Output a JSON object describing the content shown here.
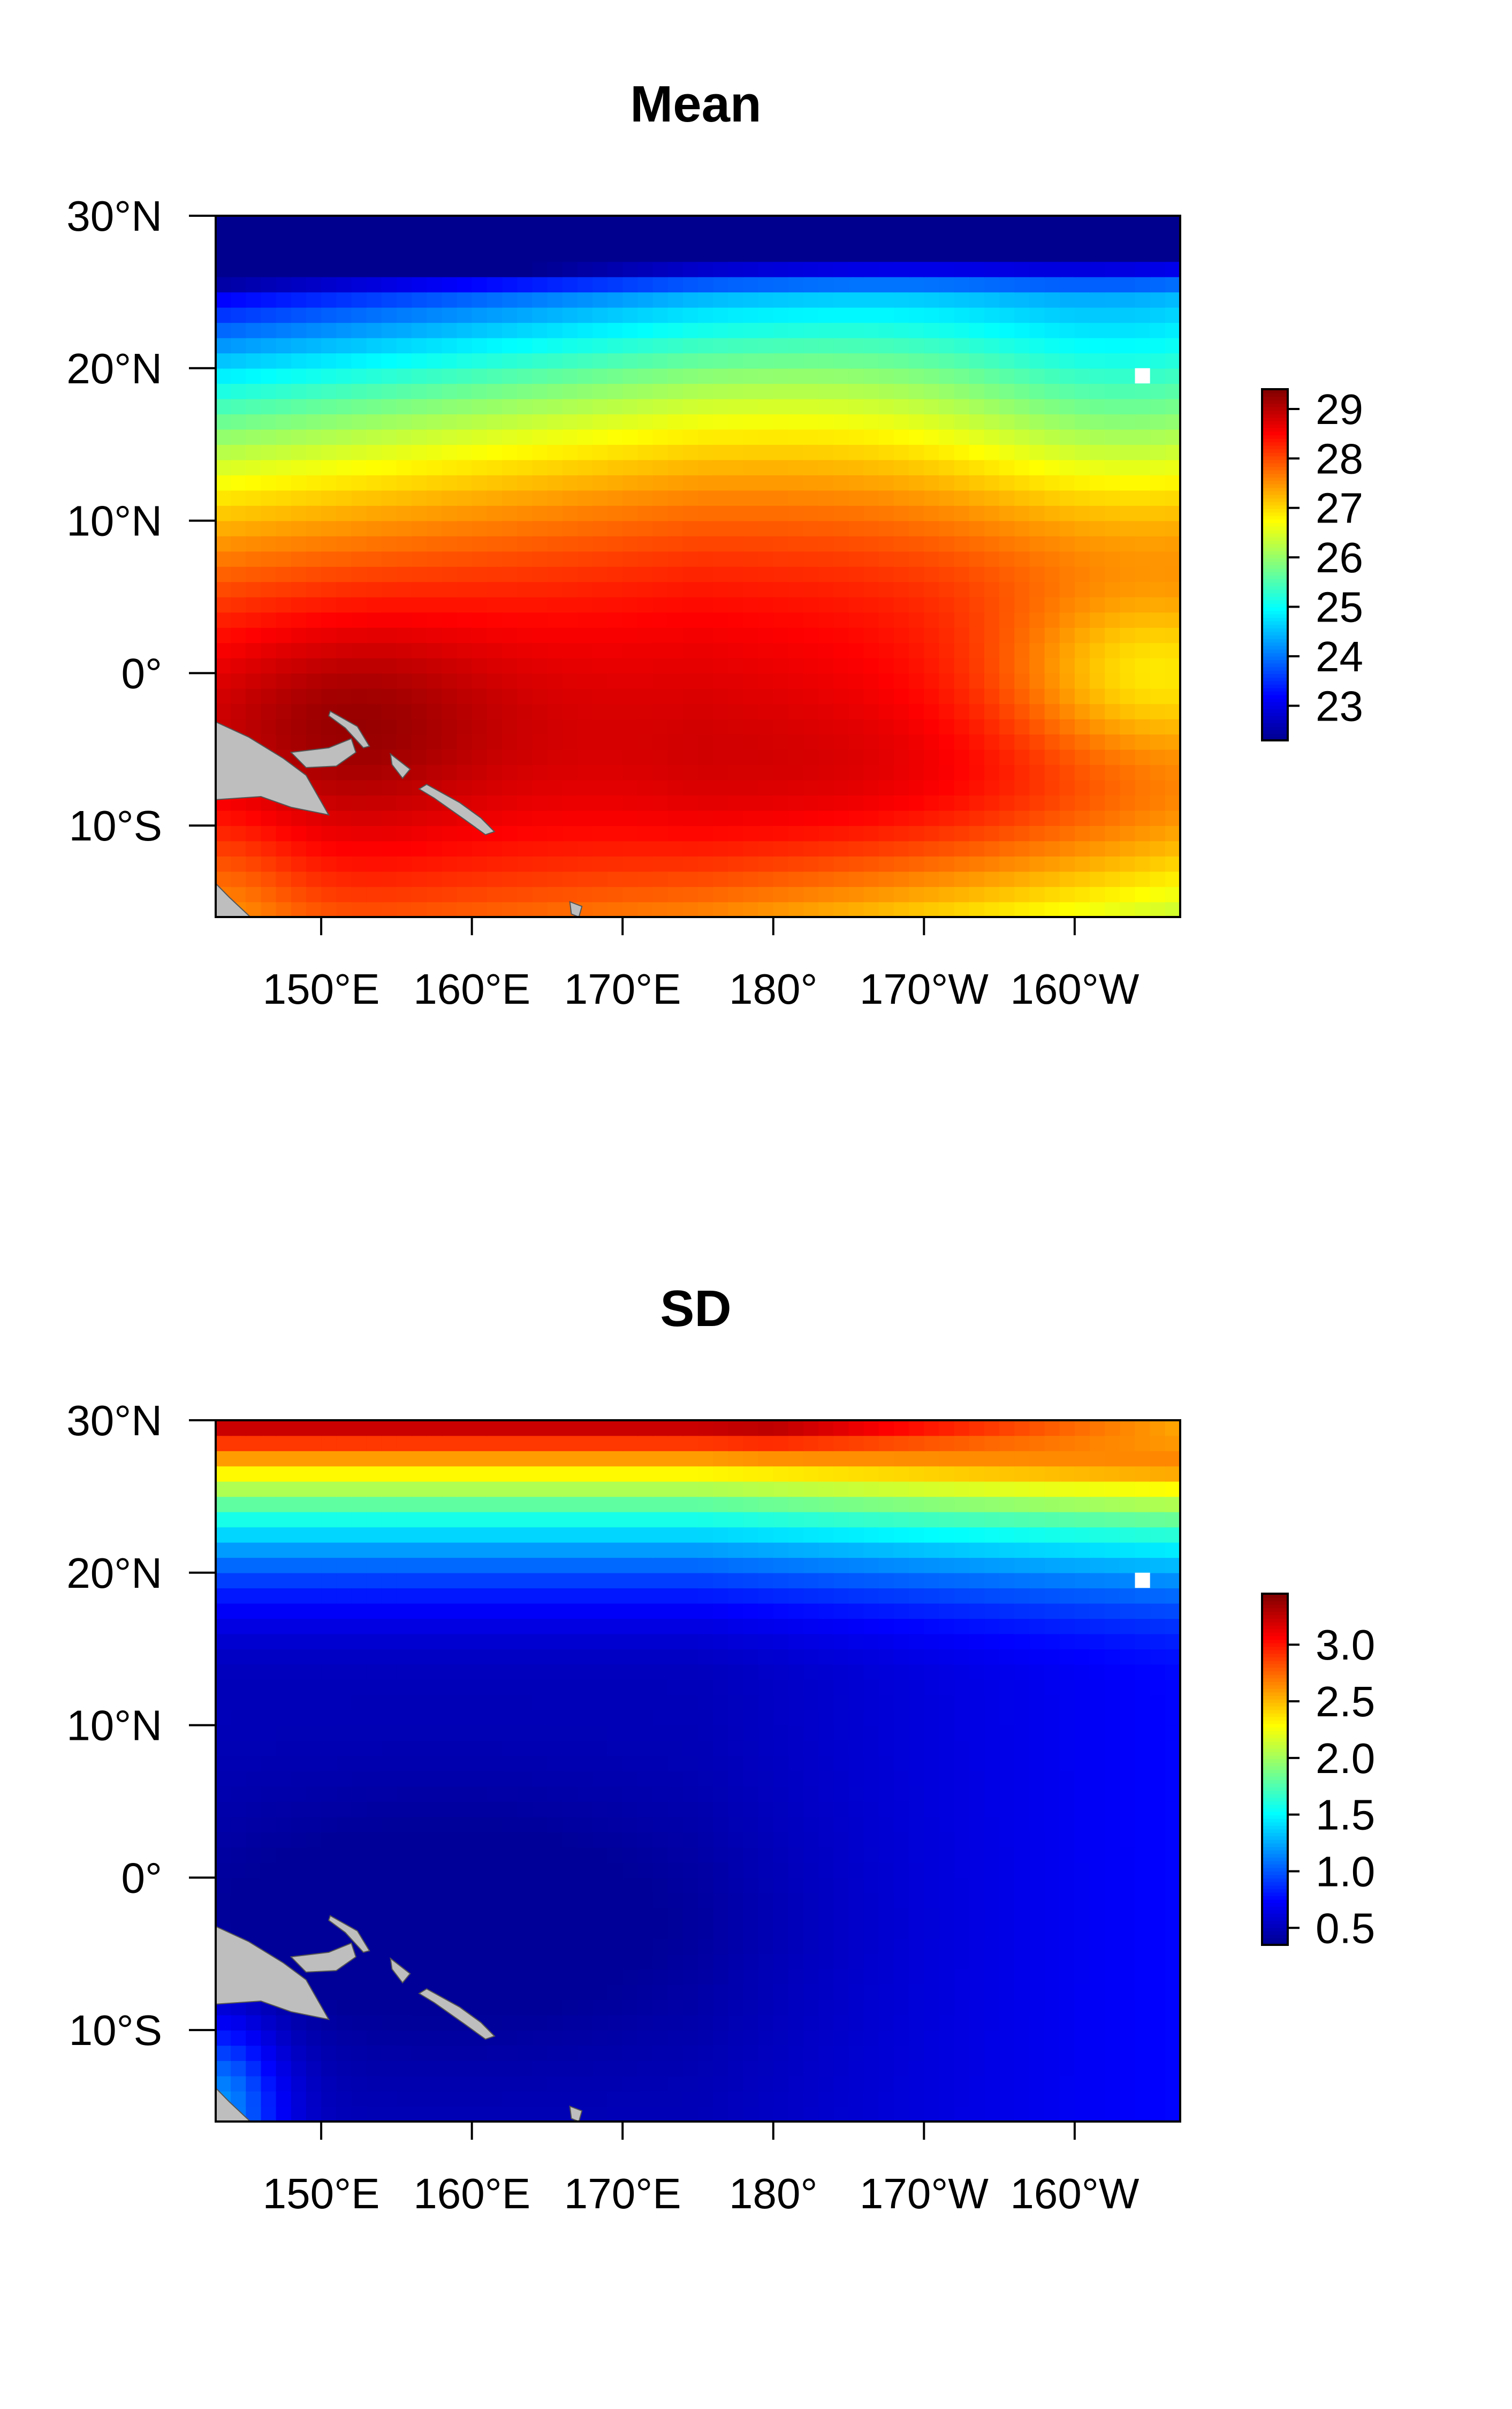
{
  "panels": [
    {
      "title": "Mean",
      "field": "mean",
      "colorbar": {
        "min": 22.3,
        "max": 29.4,
        "ticks": [
          23,
          24,
          25,
          26,
          27,
          28,
          29
        ],
        "tick_labels": [
          "23",
          "24",
          "25",
          "26",
          "27",
          "28",
          "29"
        ]
      }
    },
    {
      "title": "SD",
      "field": "sd",
      "colorbar": {
        "min": 0.35,
        "max": 3.45,
        "ticks": [
          0.5,
          1.0,
          1.5,
          2.0,
          2.5,
          3.0
        ],
        "tick_labels": [
          "0.5",
          "1.0",
          "1.5",
          "2.0",
          "2.5",
          "3.0"
        ]
      }
    }
  ],
  "map": {
    "lon_range": [
      143,
      207
    ],
    "lat_range": [
      -16,
      30
    ],
    "x_ticks": [
      {
        "lon": 150,
        "label": "150°E"
      },
      {
        "lon": 160,
        "label": "160°E"
      },
      {
        "lon": 170,
        "label": "170°E"
      },
      {
        "lon": 180,
        "label": "180°"
      },
      {
        "lon": 190,
        "label": "170°W"
      },
      {
        "lon": 200,
        "label": "160°W"
      }
    ],
    "y_ticks": [
      {
        "lat": 30,
        "label": "30°N"
      },
      {
        "lat": 20,
        "label": "20°N"
      },
      {
        "lat": 10,
        "label": "10°N"
      },
      {
        "lat": 0,
        "label": "0°"
      },
      {
        "lat": -10,
        "label": "10°S"
      }
    ],
    "land_color": "#bebebe",
    "missing_color": "#ffffff",
    "colormap": [
      "#00008F",
      "#0000FF",
      "#0080FF",
      "#00FFFF",
      "#80FF80",
      "#FFFF00",
      "#FF8000",
      "#FF0000",
      "#800000"
    ],
    "landmasses": [
      {
        "name": "new-guinea-icon",
        "points": [
          [
            143,
            -3.2
          ],
          [
            145.2,
            -4.2
          ],
          [
            147.5,
            -5.6
          ],
          [
            149,
            -6.7
          ],
          [
            150.5,
            -9.3
          ],
          [
            148,
            -8.8
          ],
          [
            146,
            -8.1
          ],
          [
            143,
            -8.3
          ]
        ]
      },
      {
        "name": "australia-icon",
        "points": [
          [
            143,
            -13.8
          ],
          [
            143.9,
            -14.7
          ],
          [
            145.3,
            -16
          ],
          [
            143,
            -16
          ]
        ]
      },
      {
        "name": "new-britain-icon",
        "points": [
          [
            148,
            -5.2
          ],
          [
            150.5,
            -4.9
          ],
          [
            152,
            -4.3
          ],
          [
            152.3,
            -5.2
          ],
          [
            151,
            -6.1
          ],
          [
            149,
            -6.2
          ]
        ]
      },
      {
        "name": "new-ireland-icon",
        "points": [
          [
            150.6,
            -2.5
          ],
          [
            152.4,
            -3.5
          ],
          [
            153.2,
            -4.8
          ],
          [
            152.8,
            -4.9
          ],
          [
            151.6,
            -3.6
          ],
          [
            150.5,
            -2.8
          ]
        ]
      },
      {
        "name": "bougainville-icon",
        "points": [
          [
            154.6,
            -5.3
          ],
          [
            155.9,
            -6.3
          ],
          [
            155.4,
            -6.9
          ],
          [
            154.7,
            -6
          ]
        ]
      },
      {
        "name": "solomon-islands-icon",
        "points": [
          [
            157,
            -7.3
          ],
          [
            159.2,
            -8.5
          ],
          [
            160.6,
            -9.5
          ],
          [
            161.5,
            -10.4
          ],
          [
            160.9,
            -10.6
          ],
          [
            159.5,
            -9.6
          ],
          [
            157.5,
            -8.2
          ],
          [
            156.5,
            -7.6
          ]
        ]
      },
      {
        "name": "vanuatu-icon",
        "points": [
          [
            166.5,
            -15
          ],
          [
            167.3,
            -15.3
          ],
          [
            167.1,
            -16
          ],
          [
            166.6,
            -15.8
          ]
        ]
      }
    ],
    "missing_cells": [
      [
        204.5,
        19.5
      ]
    ]
  }
}
